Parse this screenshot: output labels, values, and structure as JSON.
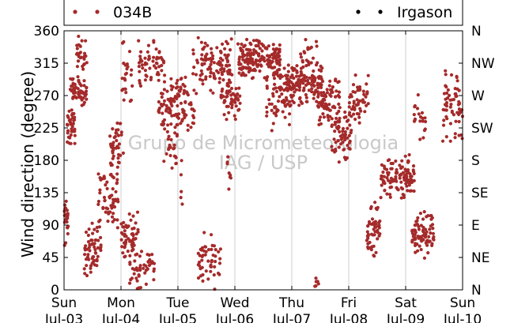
{
  "chart_data": {
    "type": "scatter",
    "ylabel": "Wind direction (degree)",
    "ylim": [
      0,
      360
    ],
    "yticks": [
      0,
      45,
      90,
      135,
      180,
      225,
      270,
      315,
      360
    ],
    "compass_ticks": [
      "N",
      "NE",
      "E",
      "SE",
      "S",
      "SW",
      "W",
      "NW",
      "N"
    ],
    "xlim": [
      0,
      7
    ],
    "x_unit": "days from Sun Jul-03",
    "xticks": [
      {
        "day": "Sun",
        "date": "Jul-03"
      },
      {
        "day": "Mon",
        "date": "Jul-04"
      },
      {
        "day": "Tue",
        "date": "Jul-05"
      },
      {
        "day": "Wed",
        "date": "Jul-06"
      },
      {
        "day": "Thu",
        "date": "Jul-07"
      },
      {
        "day": "Fri",
        "date": "Jul-08"
      },
      {
        "day": "Sat",
        "date": "Jul-09"
      },
      {
        "day": "Sun",
        "date": "Jul-10"
      }
    ],
    "grid": "vertical",
    "legend_placement": "top",
    "watermark": [
      "Grupo de Micrometeorologia",
      "IAG / USP"
    ],
    "series": [
      {
        "name": "034B",
        "color": "#a52a2a",
        "clusters": [
          {
            "x": [
              0.0,
              0.08
            ],
            "y": [
              60,
              140
            ],
            "n": 25
          },
          {
            "x": [
              0.05,
              0.2
            ],
            "y": [
              190,
              260
            ],
            "n": 35
          },
          {
            "x": [
              0.1,
              0.4
            ],
            "y": [
              255,
              300
            ],
            "n": 55
          },
          {
            "x": [
              0.22,
              0.42
            ],
            "y": [
              295,
              358
            ],
            "n": 30
          },
          {
            "x": [
              0.35,
              0.65
            ],
            "y": [
              5,
              100
            ],
            "n": 60
          },
          {
            "x": [
              0.6,
              0.95
            ],
            "y": [
              80,
              170
            ],
            "n": 55
          },
          {
            "x": [
              0.8,
              1.05
            ],
            "y": [
              150,
              250
            ],
            "n": 45
          },
          {
            "x": [
              1.0,
              1.3
            ],
            "y": [
              40,
              115
            ],
            "n": 55
          },
          {
            "x": [
              1.15,
              1.6
            ],
            "y": [
              0,
              60
            ],
            "n": 50
          },
          {
            "x": [
              1.0,
              1.2
            ],
            "y": [
              240,
              360
            ],
            "n": 25
          },
          {
            "x": [
              1.3,
              1.75
            ],
            "y": [
              280,
              350
            ],
            "n": 55
          },
          {
            "x": [
              1.65,
              2.3
            ],
            "y": [
              215,
              300
            ],
            "n": 110
          },
          {
            "x": [
              1.75,
              2.0
            ],
            "y": [
              160,
              240
            ],
            "n": 25
          },
          {
            "x": [
              2.05,
              2.1
            ],
            "y": [
              100,
              200
            ],
            "n": 5
          },
          {
            "x": [
              2.35,
              2.75
            ],
            "y": [
              0,
              80
            ],
            "n": 50
          },
          {
            "x": [
              2.25,
              2.95
            ],
            "y": [
              260,
              360
            ],
            "n": 110
          },
          {
            "x": [
              2.75,
              3.1
            ],
            "y": [
              235,
              295
            ],
            "n": 50
          },
          {
            "x": [
              2.85,
              2.95
            ],
            "y": [
              130,
              190
            ],
            "n": 8
          },
          {
            "x": [
              3.05,
              3.8
            ],
            "y": [
              290,
              352
            ],
            "n": 180
          },
          {
            "x": [
              3.55,
              4.05
            ],
            "y": [
              220,
              320
            ],
            "n": 70
          },
          {
            "x": [
              3.85,
              4.55
            ],
            "y": [
              255,
              320
            ],
            "n": 140
          },
          {
            "x": [
              4.15,
              4.45
            ],
            "y": [
              305,
              355
            ],
            "n": 20
          },
          {
            "x": [
              4.45,
              4.85
            ],
            "y": [
              220,
              300
            ],
            "n": 70
          },
          {
            "x": [
              4.7,
              5.05
            ],
            "y": [
              170,
              260
            ],
            "n": 55
          },
          {
            "x": [
              5.0,
              5.35
            ],
            "y": [
              210,
              310
            ],
            "n": 55
          },
          {
            "x": [
              5.3,
              5.55
            ],
            "y": [
              40,
              130
            ],
            "n": 50
          },
          {
            "x": [
              5.55,
              6.15
            ],
            "y": [
              120,
              190
            ],
            "n": 110
          },
          {
            "x": [
              6.1,
              6.5
            ],
            "y": [
              40,
              110
            ],
            "n": 80
          },
          {
            "x": [
              6.15,
              6.35
            ],
            "y": [
              200,
              285
            ],
            "n": 20
          },
          {
            "x": [
              6.65,
              7.0
            ],
            "y": [
              200,
              310
            ],
            "n": 65
          },
          {
            "x": [
              4.4,
              4.5
            ],
            "y": [
              0,
              20
            ],
            "n": 6
          }
        ]
      },
      {
        "name": "Irgason",
        "color": "#000000",
        "clusters": []
      }
    ]
  }
}
